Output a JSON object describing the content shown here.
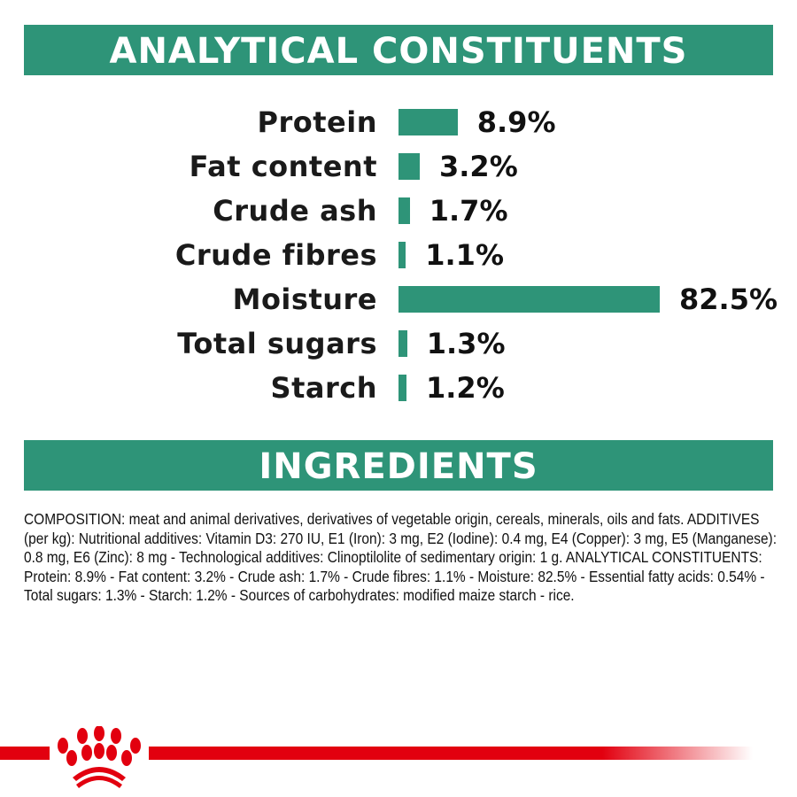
{
  "header": {
    "title": "ANALYTICAL CONSTITUENTS"
  },
  "chart_data": {
    "type": "bar",
    "orientation": "horizontal",
    "categories": [
      "Protein",
      "Fat content",
      "Crude ash",
      "Crude fibres",
      "Moisture",
      "Total sugars",
      "Starch"
    ],
    "values": [
      8.9,
      3.2,
      1.7,
      1.1,
      82.5,
      1.3,
      1.2
    ],
    "value_labels": [
      "8.9%",
      "3.2%",
      "1.7%",
      "1.1%",
      "82.5%",
      "1.3%",
      "1.2%"
    ],
    "unit": "%",
    "bar_color": "#2e9478",
    "grid": false
  },
  "ingredients": {
    "title": "INGREDIENTS",
    "text": "COMPOSITION: meat and animal derivatives, derivatives of vegetable origin, cereals, minerals, oils and fats. ADDITIVES (per kg): Nutritional additives: Vitamin D3: 270 IU, E1 (Iron): 3 mg, E2 (Iodine): 0.4 mg, E4 (Copper): 3 mg, E5 (Manganese): 0.8 mg, E6 (Zinc): 8 mg - Technological additives: Clinoptilolite of sedimentary origin: 1 g. ANALYTICAL CONSTITUENTS: Protein: 8.9% - Fat content: 3.2% - Crude ash: 1.7% - Crude fibres: 1.1% - Moisture: 82.5% - Essential fatty acids: 0.54% - Total sugars: 1.3% - Starch: 1.2% - Sources of carbohydrates: modified maize starch - rice."
  },
  "colors": {
    "accent": "#2e9478",
    "brand_red": "#e2000f"
  }
}
